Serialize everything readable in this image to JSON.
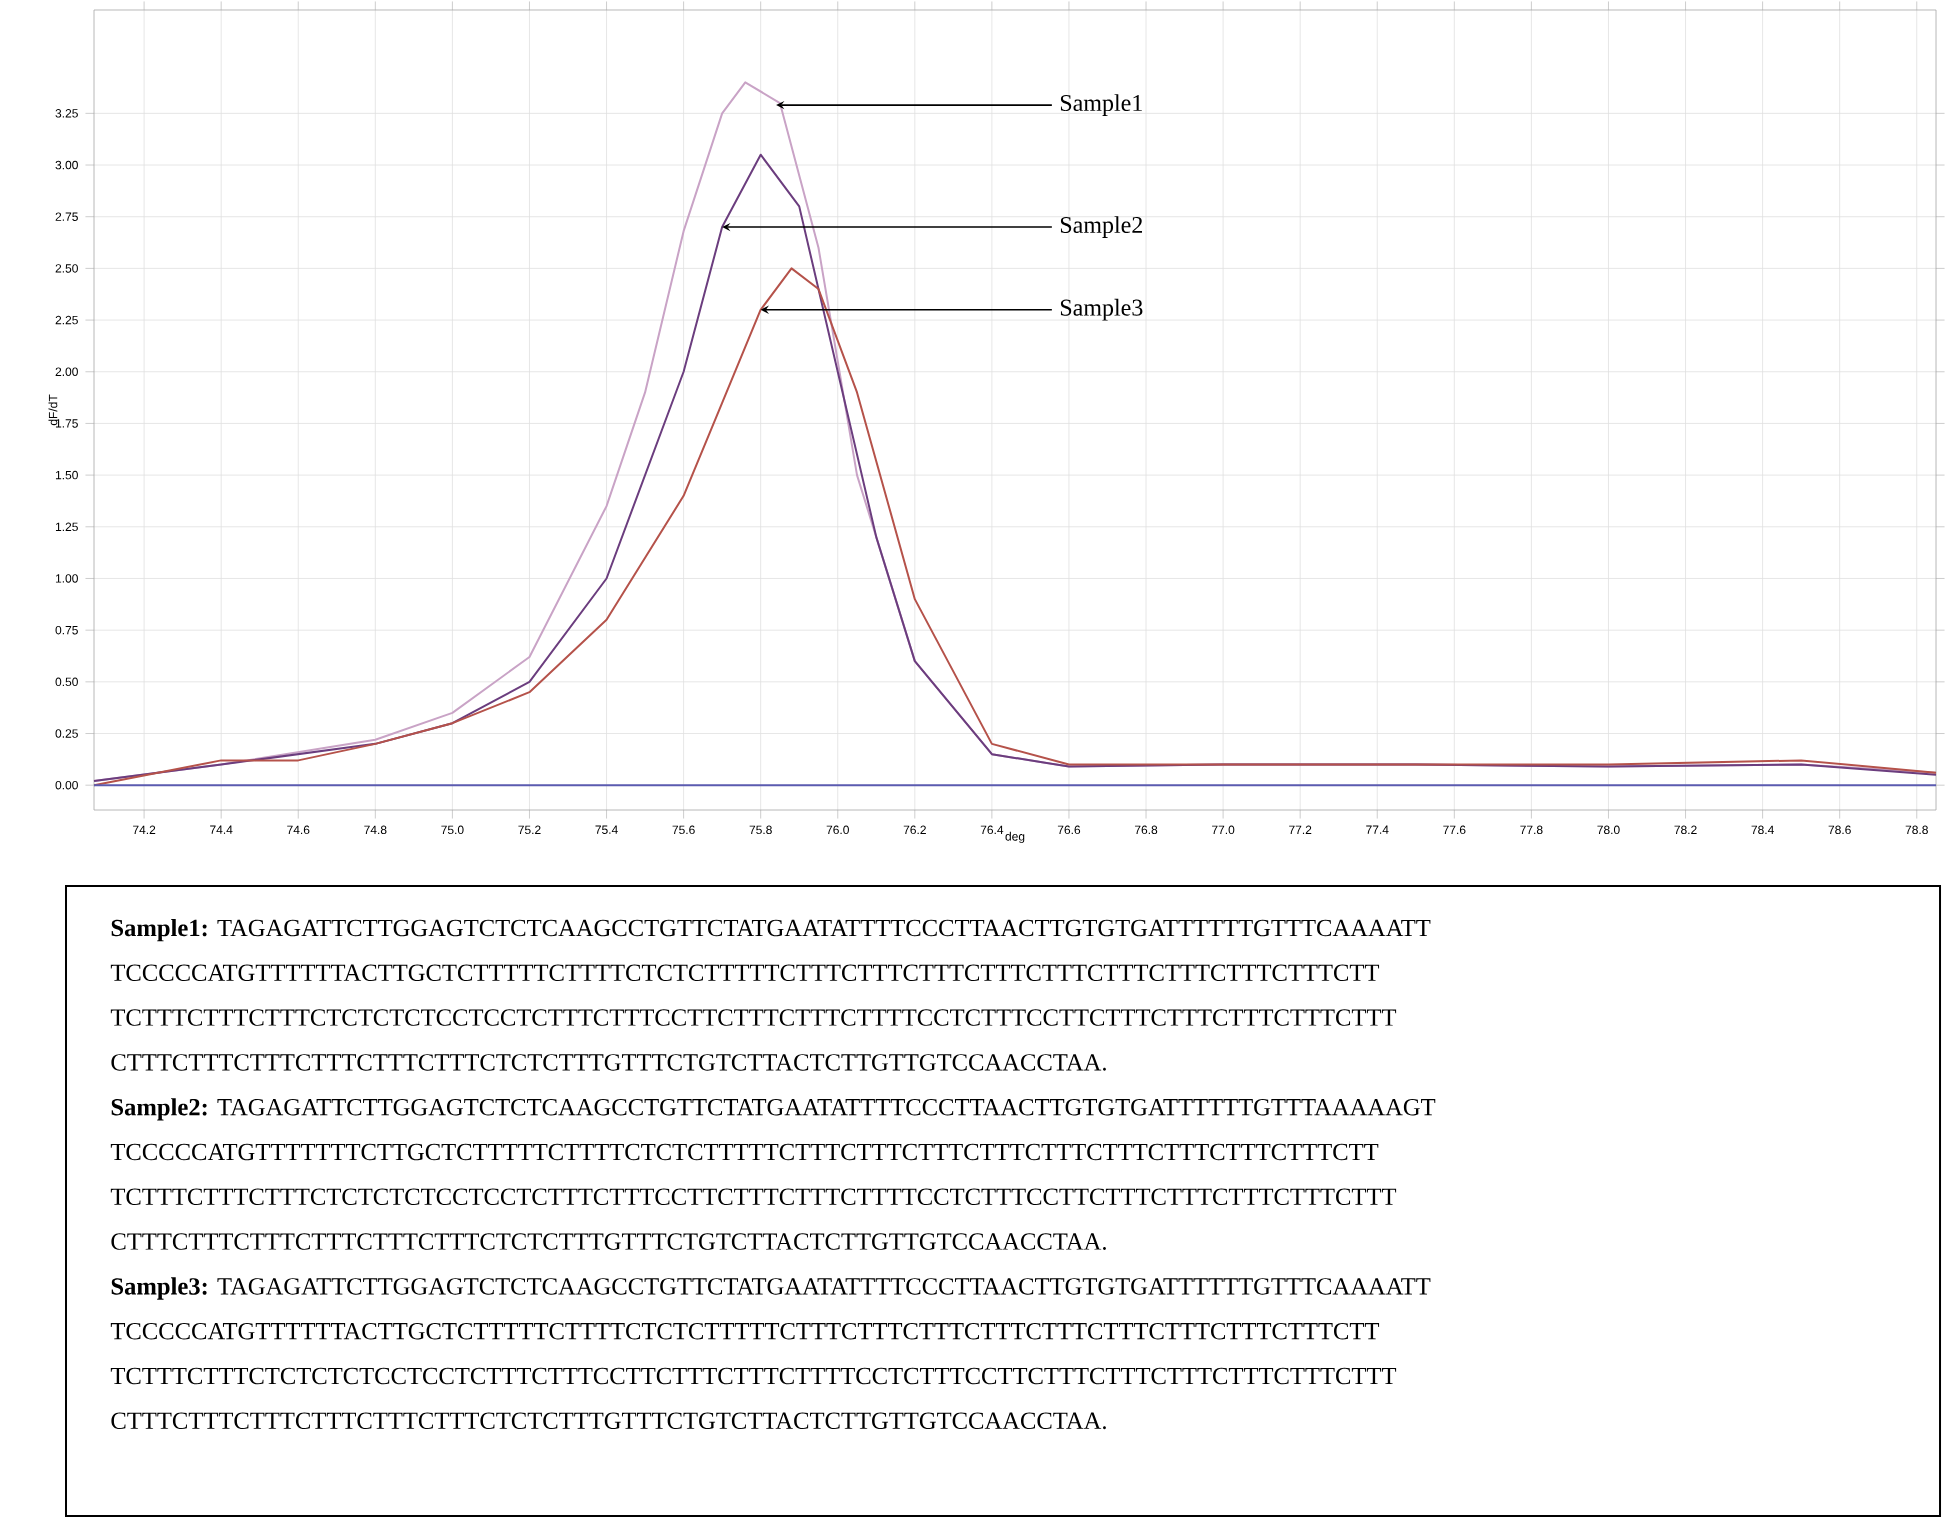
{
  "chart_data": [
    {
      "type": "line",
      "xlabel": "deg",
      "ylabel": "dF/dT",
      "xlim": [
        74.07,
        78.85
      ],
      "ylim": [
        -0.12,
        3.75
      ],
      "xticks": [
        74.2,
        74.4,
        74.6,
        74.8,
        {
          "value": 75,
          "label": "75.0"
        },
        75.2,
        75.4,
        75.6,
        75.8,
        {
          "value": 76,
          "label": "76.0"
        },
        76.2,
        76.4,
        76.6,
        76.8,
        {
          "value": 77,
          "label": "77.0"
        },
        77.2,
        77.4,
        77.6,
        77.8,
        {
          "value": 78,
          "label": "78.0"
        },
        78.2,
        78.4,
        78.6,
        78.8
      ],
      "yticks": [
        {
          "value": 0,
          "label": "0.00"
        },
        {
          "value": 0.25,
          "label": "0.25"
        },
        {
          "value": 0.5,
          "label": "0.50"
        },
        {
          "value": 0.75,
          "label": "0.75"
        },
        {
          "value": 1,
          "label": "1.00"
        },
        {
          "value": 1.25,
          "label": "1.25"
        },
        {
          "value": 1.5,
          "label": "1.50"
        },
        {
          "value": 1.75,
          "label": "1.75"
        },
        {
          "value": 2,
          "label": "2.00"
        },
        {
          "value": 2.25,
          "label": "2.25"
        },
        {
          "value": 2.5,
          "label": "2.50"
        },
        {
          "value": 2.75,
          "label": "2.75"
        },
        {
          "value": 3,
          "label": "3.00"
        },
        {
          "value": 3.25,
          "label": "3.25"
        }
      ],
      "grid": true,
      "series": [
        {
          "color": "#c9a3c6",
          "x": [
            74.07,
            74.4,
            74.8,
            75.0,
            75.2,
            75.4,
            75.5,
            75.6,
            75.7,
            75.76,
            75.85,
            75.95,
            76.05,
            76.2,
            76.4,
            76.6,
            77.0,
            77.5,
            78.0,
            78.5,
            78.85
          ],
          "values": [
            0.02,
            0.1,
            0.22,
            0.35,
            0.62,
            1.35,
            1.9,
            2.68,
            3.25,
            3.4,
            3.3,
            2.6,
            1.5,
            0.6,
            0.15,
            0.09,
            0.1,
            0.1,
            0.09,
            0.1,
            0.06
          ]
        },
        {
          "color": "#6b3d7e",
          "x": [
            74.07,
            74.4,
            74.8,
            75.0,
            75.2,
            75.4,
            75.6,
            75.7,
            75.8,
            75.9,
            76.0,
            76.1,
            76.2,
            76.4,
            76.6,
            77.0,
            77.5,
            78.0,
            78.5,
            78.85
          ],
          "values": [
            0.02,
            0.1,
            0.2,
            0.3,
            0.5,
            1.0,
            2.0,
            2.7,
            3.05,
            2.8,
            2.0,
            1.2,
            0.6,
            0.15,
            0.09,
            0.1,
            0.1,
            0.09,
            0.1,
            0.05
          ]
        },
        {
          "color": "#b5524a",
          "x": [
            74.07,
            74.4,
            74.6,
            74.8,
            75.0,
            75.2,
            75.4,
            75.6,
            75.7,
            75.8,
            75.88,
            75.95,
            76.05,
            76.2,
            76.4,
            76.6,
            77.0,
            77.5,
            78.0,
            78.5,
            78.85
          ],
          "values": [
            0.0,
            0.12,
            0.12,
            0.2,
            0.3,
            0.45,
            0.8,
            1.4,
            1.85,
            2.3,
            2.5,
            2.4,
            1.9,
            0.9,
            0.2,
            0.1,
            0.1,
            0.1,
            0.1,
            0.12,
            0.06
          ]
        },
        {
          "color": "#5b5bb0",
          "x": [
            74.07,
            78.85
          ],
          "values": [
            0,
            0
          ]
        }
      ],
      "annotations": [
        {
          "text": "Sample1",
          "x": 75.84,
          "y": 3.29
        },
        {
          "text": "Sample2",
          "x": 75.7,
          "y": 2.7
        },
        {
          "text": "Sample3",
          "x": 75.8,
          "y": 2.3
        }
      ]
    },
    {
      "type": "other",
      "annotations": [
        "**Sample1:** TAGAGATTCTTGGAGTCTCTCAAGCCTGTTCTATGAATATTTTCCCTTAACTTGTGTGATTTTTTGTTTCAAAATT",
        "TCCCCCATGTTTTTTACTTGCTCTTTTTCTTTTCTCTCTTTTTCTTTCTTTCTTTCTTTCTTTCTTTCTTTCTTTCTTTCTT",
        "TCTTTCTTTCTTTCTCTCTCTCCTCCTCTTTCTTTCCTTCTTTCTTTCTTTTCCTCTTTCCTTCTTTCTTTCTTTCTTTCTTT",
        "CTTTCTTTCTTTCTTTCTTTCTTTCTCTCTTTGTTTCTGTCTTACTCTTGTTGTCCAACCTAA.",
        "**Sample2:** TAGAGATTCTTGGAGTCTCTCAAGCCTGTTCTATGAATATTTTCCCTTAACTTGTGTGATTTTTTGTTTAAAAAGT",
        "TCCCCCATGTTTTTTTCTTGCTCTTTTTCTTTTCTCTCTTTTTCTTTCTTTCTTTCTTTCTTTCTTTCTTTCTTTCTTTCTT",
        "TCTTTCTTTCTTTCTCTCTCTCCTCCTCTTTCTTTCCTTCTTTCTTTCTTTTCCTCTTTCCTTCTTTCTTTCTTTCTTTCTTT",
        "CTTTCTTTCTTTCTTTCTTTCTTTCTCTCTTTGTTTCTGTCTTACTCTTGTTGTCCAACCTAA.",
        "**Sample3:** TAGAGATTCTTGGAGTCTCTCAAGCCTGTTCTATGAATATTTTCCCTTAACTTGTGTGATTTTTTGTTTCAAAATT",
        "TCCCCCATGTTTTTTACTTGCTCTTTTTCTTTTCTCTCTTTTTCTTTCTTTCTTTCTTTCTTTCTTTCTTTCTTTCTTTCTT",
        "TCTTTCTTTCTCTCTCTCCTCCTCTTTCTTTCCTTCTTTCTTTCTTTTCCTCTTTCCTTCTTTCTTTCTTTCTTTCTTTCTTT",
        "CTTTCTTTCTTTCTTTCTTTCTTTCTCTCTTTGTTTCTGTCTTACTCTTGTTGTCCAACCTAA."
      ]
    }
  ]
}
